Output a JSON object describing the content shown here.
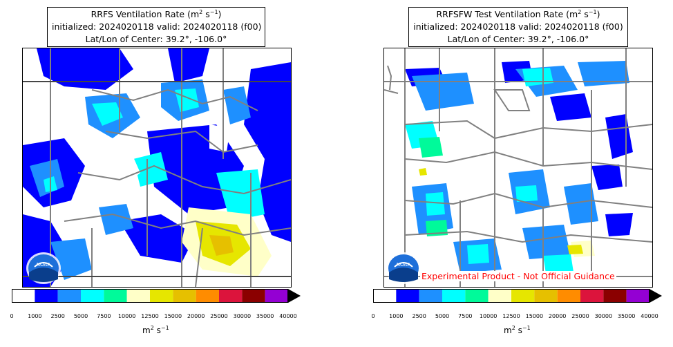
{
  "left": {
    "title_line1_prefix": "RRFS Ventilation Rate (m",
    "title_exp1": "2",
    "title_mid": " s",
    "title_exp2": "−1",
    "title_suffix": ")",
    "title_line2": "initialized: 2024020118 valid: 2024020118 (f00)",
    "title_line3": "Lat/Lon of Center: 39.2°, -106.0°"
  },
  "right": {
    "title_line1_prefix": "RRFSFW Test Ventilation Rate (m",
    "title_exp1": "2",
    "title_mid": " s",
    "title_exp2": "−1",
    "title_suffix": ")",
    "title_line2": "initialized: 2024020118 valid: 2024020118 (f00)",
    "title_line3": "Lat/Lon of Center: 39.2°, -106.0°",
    "disclaimer": "Experimental Product - Not Official Guidance"
  },
  "colorbar": {
    "ticks": [
      "0",
      "1000",
      "2500",
      "5000",
      "7500",
      "10000",
      "12500",
      "15000",
      "20000",
      "25000",
      "30000",
      "35000",
      "40000"
    ],
    "colors": [
      "#ffffff",
      "#0000ff",
      "#1e90ff",
      "#00ffff",
      "#00fa9a",
      "#ffffc8",
      "#e6e600",
      "#e6c000",
      "#ff8c00",
      "#dc143c",
      "#8b0000",
      "#9400d3"
    ],
    "units_prefix": "m",
    "units_exp1": "2",
    "units_mid": " s",
    "units_exp2": "−1"
  },
  "logo_text": "NOAA"
}
